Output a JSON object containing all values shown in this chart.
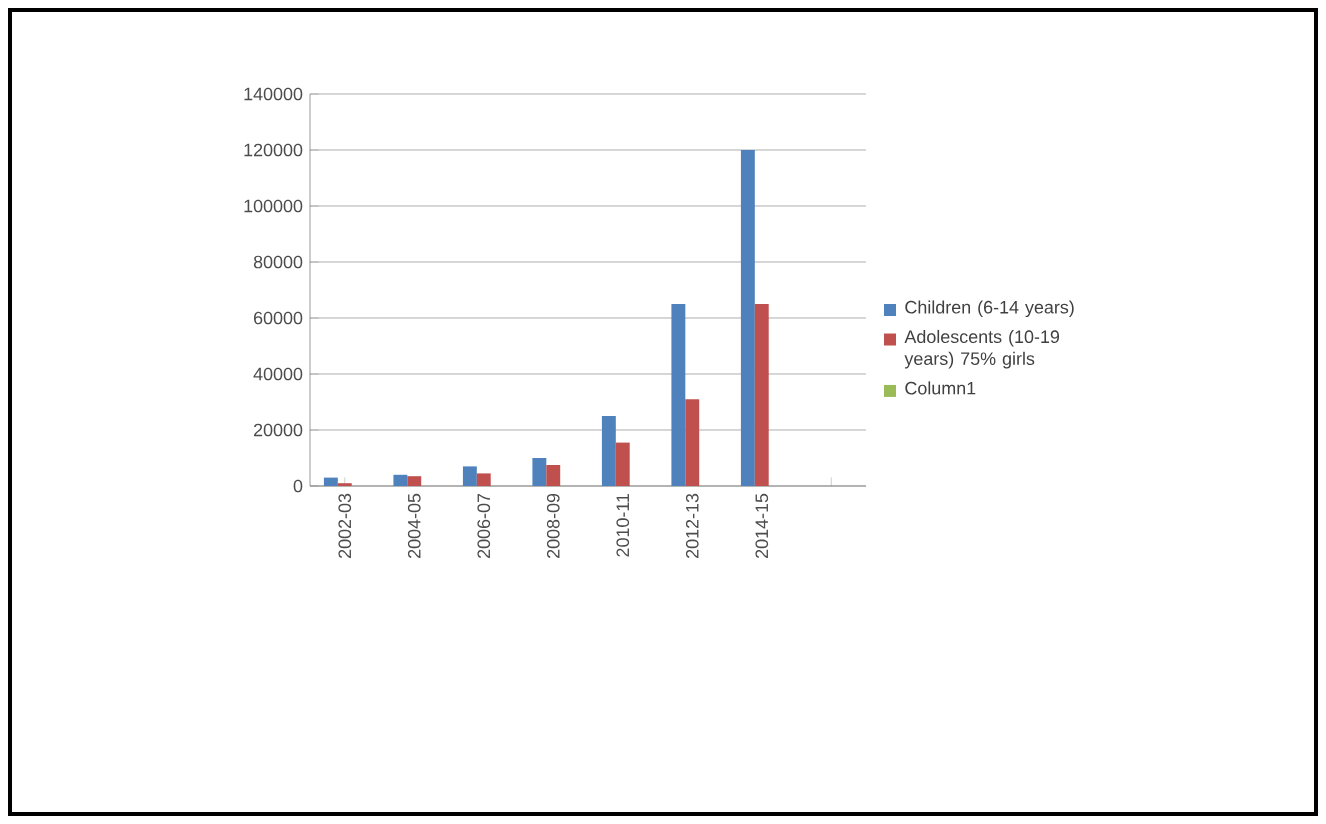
{
  "chart_data": {
    "type": "bar",
    "categories": [
      "2002-03",
      "2004-05",
      "2006-07",
      "2008-09",
      "2010-11",
      "2012-13",
      "2014-15",
      null
    ],
    "series": [
      {
        "name": "Children (6-14 years)",
        "color": "#4f81bd",
        "values": [
          3000,
          4000,
          7000,
          10000,
          25000,
          65000,
          120000,
          null
        ]
      },
      {
        "name": "Adolescents (10-19 years) 75% girls",
        "color": "#c0504d",
        "values": [
          1000,
          3500,
          4500,
          7500,
          15500,
          31000,
          65000,
          null
        ]
      },
      {
        "name": "Column1",
        "color": "#9bbb59",
        "values": [
          null,
          null,
          null,
          null,
          null,
          null,
          null,
          null
        ]
      }
    ],
    "ylim": [
      0,
      140000
    ],
    "yticks": [
      0,
      20000,
      40000,
      60000,
      80000,
      100000,
      120000,
      140000
    ],
    "grid": "y",
    "legend": "right"
  }
}
